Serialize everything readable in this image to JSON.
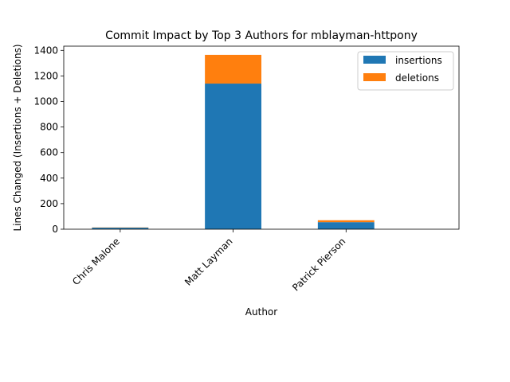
{
  "chart_data": {
    "type": "bar",
    "stacked": true,
    "title": "Commit Impact by Top 3 Authors for mblayman-httpony",
    "xlabel": "Author",
    "ylabel": "Lines Changed (Insertions + Deletions)",
    "categories": [
      "Chris Malone",
      "Matt Layman",
      "Patrick Pierson"
    ],
    "series": [
      {
        "name": "insertions",
        "color": "#1f77b4",
        "values": [
          12,
          1140,
          55
        ]
      },
      {
        "name": "deletions",
        "color": "#ff7f0e",
        "values": [
          2,
          225,
          15
        ]
      }
    ],
    "ylim": [
      0,
      1433
    ],
    "yticks": [
      0,
      200,
      400,
      600,
      800,
      1000,
      1200,
      1400
    ],
    "grid": false,
    "legend_position": "top-right"
  }
}
